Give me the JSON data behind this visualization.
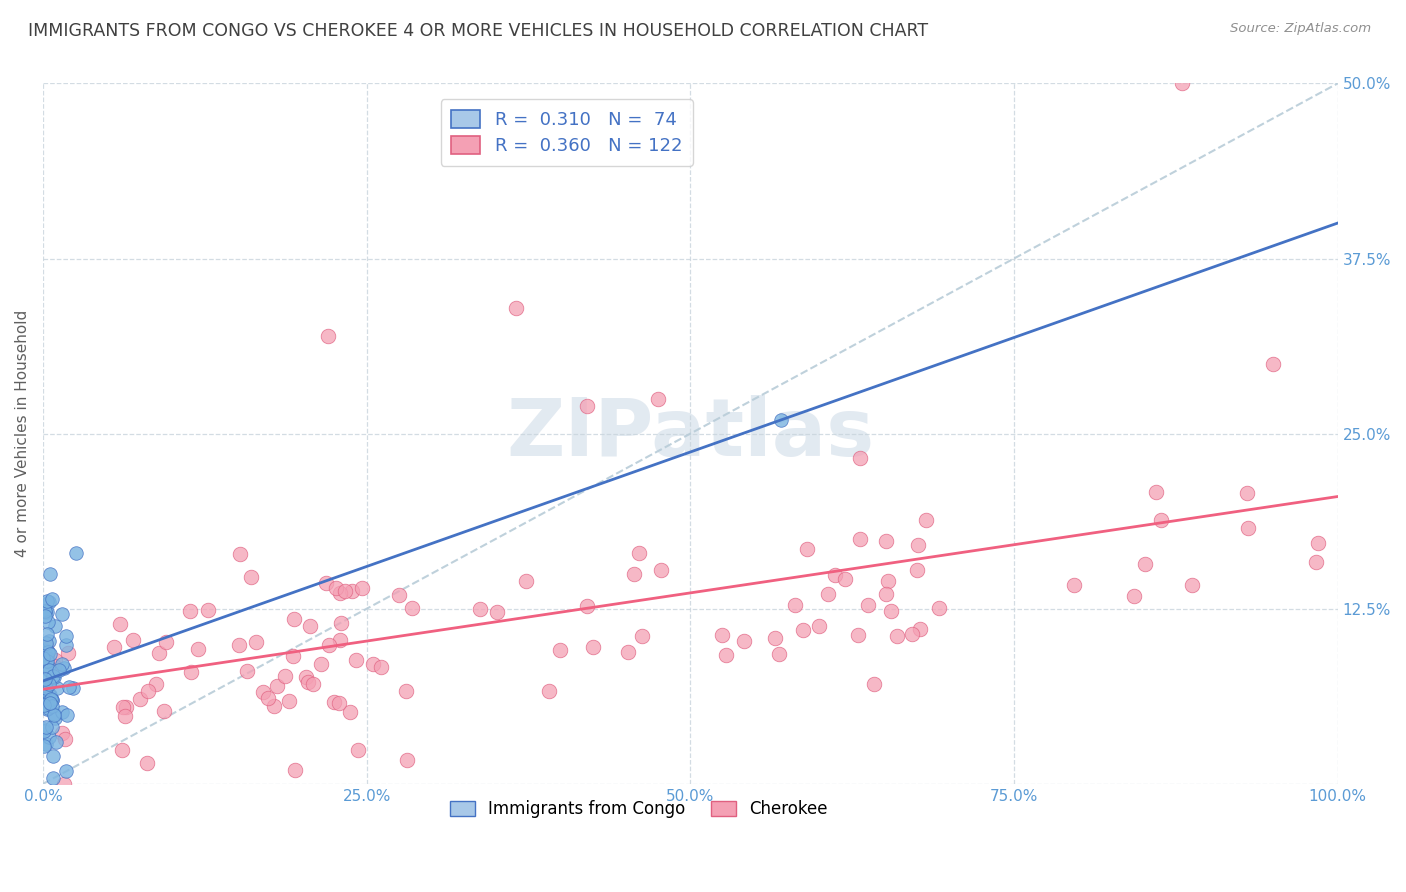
{
  "title": "IMMIGRANTS FROM CONGO VS CHEROKEE 4 OR MORE VEHICLES IN HOUSEHOLD CORRELATION CHART",
  "source": "Source: ZipAtlas.com",
  "ylabel": "4 or more Vehicles in Household",
  "xlim": [
    0,
    100
  ],
  "ylim": [
    0,
    50
  ],
  "xtick_labels": [
    "0.0%",
    "25.0%",
    "50.0%",
    "75.0%",
    "100.0%"
  ],
  "ytick_labels_right": [
    "12.5%",
    "25.0%",
    "37.5%",
    "50.0%"
  ],
  "congo_color": "#7ab3e0",
  "congo_edge": "#4472c4",
  "cherokee_color": "#f4a0b4",
  "cherokee_edge": "#e06080",
  "line_color_congo": "#4472c4",
  "line_color_cherokee": "#f06080",
  "diag_color": "#b8ccd8",
  "watermark": "ZIPatlas",
  "watermark_color": "#d0dce8",
  "grid_color": "#c8d4dc",
  "background_color": "#ffffff",
  "title_color": "#404040",
  "tick_color": "#5b9bd5",
  "ylabel_color": "#606060",
  "source_color": "#909090",
  "legend_top_patch1_face": "#a8c8e8",
  "legend_top_patch1_edge": "#4472c4",
  "legend_top_patch2_face": "#f4a0b4",
  "legend_top_patch2_edge": "#e06080",
  "legend_top_label1": "R =  0.310   N =  74",
  "legend_top_label2": "R =  0.360   N = 122",
  "legend_bot_label1": "Immigrants from Congo",
  "legend_bot_label2": "Cherokee"
}
